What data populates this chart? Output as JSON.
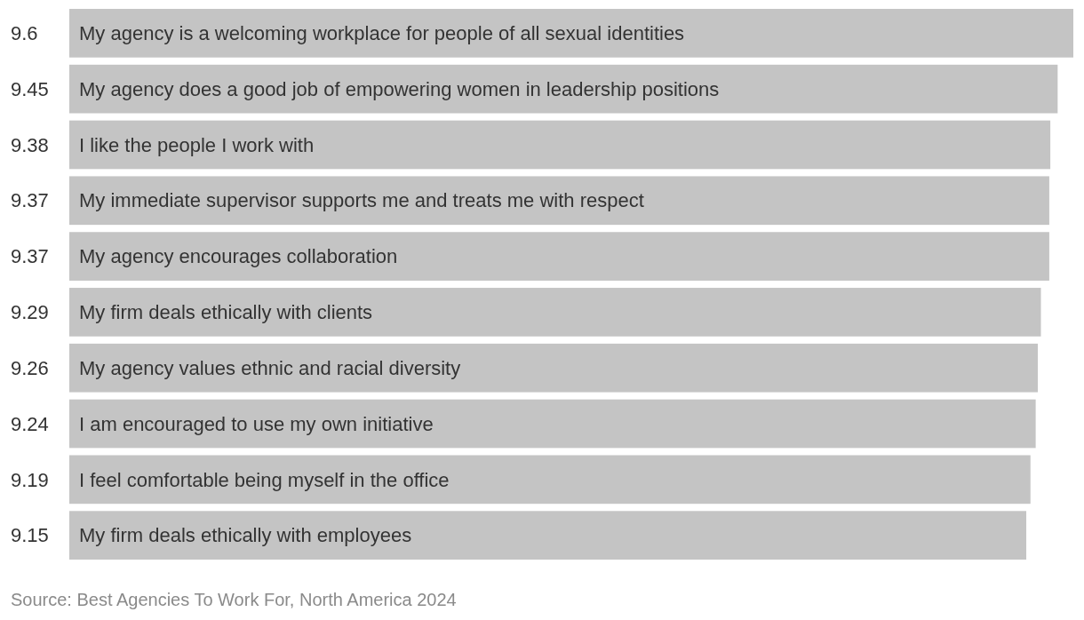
{
  "chart_data": {
    "type": "bar",
    "orientation": "horizontal",
    "categories": [
      "My agency is a welcoming workplace for people of all sexual identities",
      "My agency does a good job of empowering women in leadership positions",
      "I like the people I work with",
      "My immediate supervisor supports me and treats me with respect",
      "My agency encourages collaboration",
      "My firm deals ethically with clients",
      "My agency values ethnic and racial diversity",
      "I am encouraged to use my own initiative",
      "I feel comfortable being myself in the office",
      "My firm deals ethically with employees"
    ],
    "values": [
      9.6,
      9.45,
      9.38,
      9.37,
      9.37,
      9.29,
      9.26,
      9.24,
      9.19,
      9.15
    ],
    "color": "#c4c4c4",
    "data_labels": true,
    "annotations": [
      "Source: Best Agencies To Work For, North America 2024"
    ]
  }
}
